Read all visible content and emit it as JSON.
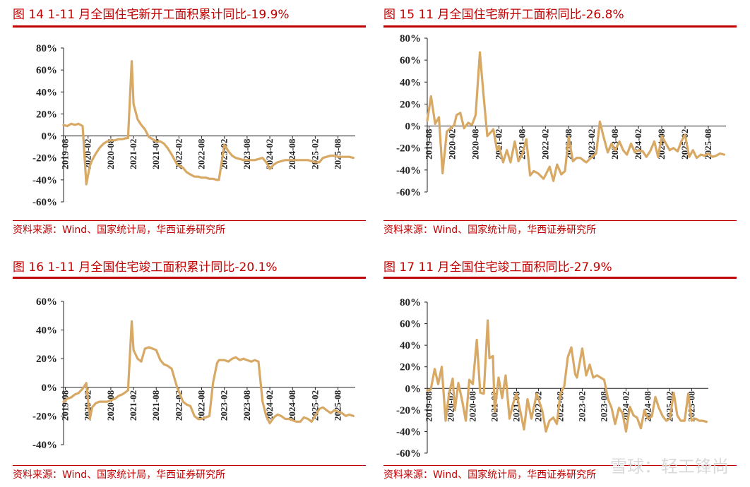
{
  "charts": [
    {
      "title": "图 14 1-11 月全国住宅新开工面积累计同比-19.9%",
      "source": "资料来源：Wind、国家统计局，华西证券研究所",
      "chart_data": {
        "type": "line",
        "color": "#d8a865",
        "ylim": [
          -60,
          80
        ],
        "yticks": [
          -60,
          -40,
          -20,
          0,
          20,
          40,
          60,
          80
        ],
        "ytick_labels": [
          "-60%",
          "-40%",
          "-20%",
          "0%",
          "20%",
          "40%",
          "60%",
          "80%"
        ],
        "xlim": [
          2019.54,
          2025.96
        ],
        "xticks": [
          2019.58,
          2020.08,
          2020.58,
          2021.08,
          2021.58,
          2022.08,
          2022.58,
          2023.08,
          2023.58,
          2024.08,
          2024.58,
          2025.08,
          2025.58
        ],
        "xtick_labels": [
          "2019-08",
          "2020-02",
          "2020-08",
          "2021-02",
          "2021-08",
          "2022-02",
          "2022-08",
          "2023-02",
          "2023-08",
          "2024-02",
          "2024-08",
          "2025-02",
          "2025-08"
        ],
        "series": [
          {
            "x": [
              2019.54,
              2019.62,
              2019.71,
              2019.79,
              2019.87,
              2019.96,
              2020.04,
              2020.12,
              2020.17,
              2020.25,
              2020.33,
              2020.42,
              2020.5,
              2020.58,
              2020.67,
              2020.75,
              2020.83,
              2020.92,
              2020.96,
              2021.04,
              2021.08,
              2021.17,
              2021.25,
              2021.33,
              2021.42,
              2021.5,
              2021.58,
              2021.67,
              2021.75,
              2021.83,
              2021.92,
              2022.04,
              2022.17,
              2022.25,
              2022.33,
              2022.42,
              2022.5,
              2022.58,
              2022.67,
              2022.75,
              2022.83,
              2022.92,
              2022.96,
              2023.08,
              2023.17,
              2023.25,
              2023.33,
              2023.42,
              2023.5,
              2023.58,
              2023.67,
              2023.75,
              2023.83,
              2023.92,
              2024.0,
              2024.08,
              2024.17,
              2024.25,
              2024.33,
              2024.42,
              2024.5,
              2024.58,
              2024.67,
              2024.75,
              2024.83,
              2024.92,
              2025.0,
              2025.08,
              2025.17,
              2025.25,
              2025.33,
              2025.42,
              2025.5,
              2025.58,
              2025.67,
              2025.75,
              2025.83,
              2025.92
            ],
            "y": [
              10,
              9,
              11,
              10,
              11,
              9,
              -44,
              -27,
              -22,
              -16,
              -11,
              -7,
              -5,
              -4,
              -4,
              -3,
              -3,
              -2,
              -2,
              68,
              29,
              15,
              10,
              6,
              -1,
              -3,
              -5,
              -5,
              -7,
              -11,
              -17,
              -26,
              -29,
              -33,
              -35,
              -37,
              -37,
              -38,
              -38,
              -39,
              -39,
              -40,
              -40,
              -8,
              -14,
              -18,
              -20,
              -21,
              -22,
              -22,
              -22,
              -22,
              -21,
              -20,
              -24,
              -30,
              -26,
              -24,
              -23,
              -22,
              -22,
              -22,
              -22,
              -22,
              -22,
              -22,
              -23,
              -24,
              -24,
              -20,
              -19,
              -18,
              -18,
              -19,
              -19,
              -19,
              -19,
              -20
            ]
          }
        ]
      }
    },
    {
      "title": "图 15 11 月全国住宅新开工面积同比-26.8%",
      "source": "资料来源：Wind、国家统计局，华西证券研究所",
      "chart_data": {
        "type": "line",
        "color": "#d8a865",
        "ylim": [
          -60,
          80
        ],
        "yticks": [
          -60,
          -40,
          -20,
          0,
          20,
          40,
          60,
          80
        ],
        "ytick_labels": [
          "-60%",
          "-40%",
          "-20%",
          "0%",
          "20%",
          "40%",
          "60%",
          "80%"
        ],
        "xlim": [
          2019.54,
          2025.96
        ],
        "xticks": [
          2019.58,
          2020.08,
          2020.58,
          2021.08,
          2021.58,
          2022.08,
          2022.58,
          2023.08,
          2023.58,
          2024.08,
          2024.58,
          2025.08,
          2025.58
        ],
        "xtick_labels": [
          "2019-08",
          "2020-02",
          "2020-08",
          "2021-02",
          "2021-08",
          "2022-02",
          "2022-08",
          "2023-02",
          "2023-08",
          "2024-02",
          "2024-08",
          "2025-02",
          "2025-08"
        ],
        "series": [
          {
            "x": [
              2019.54,
              2019.62,
              2019.71,
              2019.79,
              2019.87,
              2019.96,
              2020.04,
              2020.12,
              2020.17,
              2020.25,
              2020.33,
              2020.42,
              2020.5,
              2020.58,
              2020.67,
              2020.75,
              2020.83,
              2020.92,
              2020.96,
              2021.04,
              2021.08,
              2021.17,
              2021.25,
              2021.33,
              2021.42,
              2021.5,
              2021.58,
              2021.67,
              2021.75,
              2021.83,
              2021.92,
              2022.04,
              2022.17,
              2022.25,
              2022.33,
              2022.42,
              2022.5,
              2022.58,
              2022.67,
              2022.75,
              2022.83,
              2022.92,
              2022.96,
              2023.08,
              2023.17,
              2023.25,
              2023.33,
              2023.42,
              2023.5,
              2023.58,
              2023.67,
              2023.75,
              2023.83,
              2023.92,
              2024.0,
              2024.08,
              2024.17,
              2024.25,
              2024.33,
              2024.42,
              2024.5,
              2024.58,
              2024.67,
              2024.75,
              2024.83,
              2024.92,
              2025.0,
              2025.08,
              2025.17,
              2025.25,
              2025.33,
              2025.42,
              2025.5,
              2025.58,
              2025.67,
              2025.75,
              2025.83,
              2025.92
            ],
            "y": [
              5,
              27,
              2,
              8,
              -43,
              -5,
              -2,
              1,
              10,
              12,
              -2,
              3,
              1,
              10,
              67,
              28,
              -9,
              -5,
              -3,
              -22,
              -18,
              -33,
              -22,
              -33,
              -14,
              -32,
              -26,
              -12,
              -45,
              -41,
              -43,
              -48,
              -37,
              -50,
              -35,
              -44,
              -41,
              -10,
              -32,
              -29,
              -29,
              -32,
              -33,
              -28,
              -25,
              4,
              -10,
              -24,
              -16,
              -22,
              -14,
              -22,
              -26,
              -16,
              -24,
              -22,
              -23,
              -28,
              -23,
              -14,
              -28,
              -9,
              -16,
              -22,
              -20,
              -23,
              -14,
              -8,
              -28,
              -22,
              -29,
              -26,
              -27,
              -25,
              -28,
              -27,
              -25,
              -26
            ]
          }
        ]
      }
    },
    {
      "title": "图 16 1-11 月全国住宅竣工面积累计同比-20.1%",
      "source": "资料来源：Wind、国家统计局，华西证券研究所",
      "chart_data": {
        "type": "line",
        "color": "#d8a865",
        "ylim": [
          -40,
          60
        ],
        "yticks": [
          -40,
          -20,
          0,
          20,
          40,
          60
        ],
        "ytick_labels": [
          "-40%",
          "-20%",
          "0%",
          "20%",
          "40%",
          "60%"
        ],
        "xlim": [
          2019.54,
          2025.96
        ],
        "xticks": [
          2019.58,
          2020.08,
          2020.58,
          2021.08,
          2021.58,
          2022.08,
          2022.58,
          2023.08,
          2023.58,
          2024.08,
          2024.58,
          2025.08,
          2025.58
        ],
        "xtick_labels": [
          "2019-08",
          "2020-02",
          "2020-08",
          "2021-02",
          "2021-08",
          "2022-02",
          "2022-08",
          "2023-02",
          "2023-08",
          "2024-02",
          "2024-08",
          "2025-02",
          "2025-08"
        ],
        "series": [
          {
            "x": [
              2019.54,
              2019.62,
              2019.71,
              2019.79,
              2019.87,
              2019.96,
              2020.04,
              2020.12,
              2020.17,
              2020.25,
              2020.33,
              2020.42,
              2020.5,
              2020.58,
              2020.67,
              2020.75,
              2020.83,
              2020.92,
              2020.96,
              2021.04,
              2021.08,
              2021.17,
              2021.25,
              2021.33,
              2021.42,
              2021.5,
              2021.58,
              2021.67,
              2021.75,
              2021.83,
              2021.92,
              2022.04,
              2022.17,
              2022.25,
              2022.33,
              2022.42,
              2022.5,
              2022.58,
              2022.67,
              2022.75,
              2022.83,
              2022.92,
              2022.96,
              2023.08,
              2023.17,
              2023.25,
              2023.33,
              2023.42,
              2023.5,
              2023.58,
              2023.67,
              2023.75,
              2023.83,
              2023.92,
              2024.0,
              2024.08,
              2024.17,
              2024.25,
              2024.33,
              2024.42,
              2024.5,
              2024.58,
              2024.67,
              2024.75,
              2024.83,
              2024.92,
              2025.0,
              2025.08,
              2025.17,
              2025.25,
              2025.33,
              2025.42,
              2025.5,
              2025.58,
              2025.67,
              2025.75,
              2025.83,
              2025.92
            ],
            "y": [
              -10,
              -8,
              -7,
              -5,
              -4,
              -1,
              3,
              -22,
              -14,
              -11,
              -10,
              -10,
              -10,
              -9,
              -8,
              -6,
              -5,
              -3,
              -2,
              46,
              26,
              20,
              18,
              27,
              28,
              27,
              26,
              19,
              16,
              15,
              13,
              0,
              -10,
              -12,
              -13,
              -20,
              -22,
              -22,
              -21,
              -20,
              3,
              17,
              19,
              19,
              18,
              20,
              21,
              19,
              20,
              19,
              18,
              19,
              18,
              -10,
              -20,
              -25,
              -21,
              -19,
              -20,
              -22,
              -22,
              -23,
              -24,
              -24,
              -21,
              -22,
              -24,
              -20,
              -15,
              -14,
              -16,
              -18,
              -16,
              -17,
              -18,
              -20,
              -19,
              -20
            ]
          }
        ]
      }
    },
    {
      "title": "图 17 11 月全国住宅竣工面积同比-27.9%",
      "source": "资料来源：Wind、国家统计局，华西证券研究所",
      "chart_data": {
        "type": "line",
        "color": "#d8a865",
        "ylim": [
          -60,
          80
        ],
        "yticks": [
          -60,
          -40,
          -20,
          0,
          20,
          40,
          60,
          80
        ],
        "ytick_labels": [
          "-60%",
          "-40%",
          "-20%",
          "0%",
          "20%",
          "40%",
          "60%",
          "80%"
        ],
        "xlim": [
          2019.54,
          2025.96
        ],
        "xticks": [
          2019.58,
          2020.08,
          2020.58,
          2021.08,
          2021.58,
          2022.08,
          2022.58,
          2023.08,
          2023.58,
          2024.08,
          2024.58,
          2025.08,
          2025.58
        ],
        "xtick_labels": [
          "2019-08",
          "2020-02",
          "2020-08",
          "2021-02",
          "2021-08",
          "2022-02",
          "2022-08",
          "2023-02",
          "2023-08",
          "2024-02",
          "2024-08",
          "2025-02",
          "2025-08"
        ],
        "series": [
          {
            "x": [
              2019.54,
              2019.62,
              2019.71,
              2019.79,
              2019.87,
              2019.96,
              2020.04,
              2020.12,
              2020.17,
              2020.25,
              2020.33,
              2020.42,
              2020.5,
              2020.58,
              2020.67,
              2020.75,
              2020.83,
              2020.92,
              2020.96,
              2021.04,
              2021.08,
              2021.17,
              2021.25,
              2021.33,
              2021.42,
              2021.5,
              2021.58,
              2021.67,
              2021.75,
              2021.83,
              2021.92,
              2022.04,
              2022.17,
              2022.25,
              2022.33,
              2022.42,
              2022.5,
              2022.58,
              2022.67,
              2022.75,
              2022.83,
              2022.92,
              2022.96,
              2023.08,
              2023.17,
              2023.25,
              2023.33,
              2023.42,
              2023.5,
              2023.58,
              2023.67,
              2023.75,
              2023.83,
              2023.92,
              2024.0,
              2024.08,
              2024.17,
              2024.25,
              2024.33,
              2024.42,
              2024.5,
              2024.58,
              2024.67,
              2024.75,
              2024.83,
              2024.92,
              2025.0,
              2025.08,
              2025.17,
              2025.25,
              2025.33,
              2025.42,
              2025.5,
              2025.58,
              2025.67,
              2025.75,
              2025.83,
              2025.92
            ],
            "y": [
              -2,
              -1,
              18,
              4,
              20,
              -30,
              -4,
              9,
              -20,
              5,
              -10,
              -30,
              8,
              4,
              45,
              -4,
              -5,
              63,
              28,
              30,
              -22,
              10,
              -9,
              12,
              -28,
              -14,
              -5,
              -22,
              -38,
              -10,
              -28,
              -5,
              -21,
              -40,
              -30,
              -27,
              -33,
              -5,
              2,
              29,
              38,
              13,
              10,
              37,
              12,
              22,
              10,
              12,
              10,
              8,
              -10,
              -18,
              -33,
              -18,
              -23,
              -40,
              -17,
              -25,
              -27,
              -37,
              -20,
              -28,
              -26,
              -8,
              -18,
              -26,
              -30,
              -28,
              -4,
              -25,
              -30,
              -30,
              -5,
              -30,
              -28,
              -30,
              -30,
              -31
            ]
          }
        ]
      }
    }
  ],
  "watermark": "雪球：轻工锋尚"
}
